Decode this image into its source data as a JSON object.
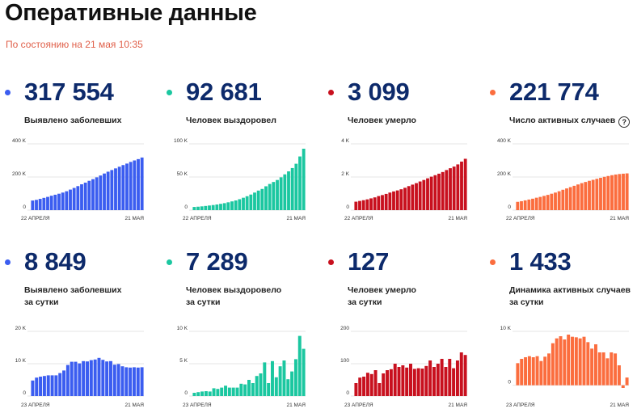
{
  "header": {
    "title": "Оперативные данные",
    "subtitle": "По состоянию на 21 мая 10:35"
  },
  "colors": {
    "blue": "#3b5df0",
    "teal": "#1bc7a0",
    "red": "#c8101e",
    "orange": "#fb6d3e"
  },
  "stats": [
    {
      "value": "317 554",
      "label_lines": [
        "Выявлено заболевших"
      ],
      "color": "blue",
      "help": false
    },
    {
      "value": "92 681",
      "label_lines": [
        "Человек выздоровел"
      ],
      "color": "teal",
      "help": false
    },
    {
      "value": "3 099",
      "label_lines": [
        "Человек умерло"
      ],
      "color": "red",
      "help": false
    },
    {
      "value": "221 774",
      "label_lines": [
        "Число активных случаев"
      ],
      "color": "orange",
      "help": true,
      "help_glyph": "?"
    },
    {
      "value": "8 849",
      "label_lines": [
        "Выявлено заболевших",
        "за сутки"
      ],
      "color": "blue",
      "help": false
    },
    {
      "value": "7 289",
      "label_lines": [
        "Человек выздоровело",
        "за сутки"
      ],
      "color": "teal",
      "help": false
    },
    {
      "value": "127",
      "label_lines": [
        "Человек умерло",
        "за сутки"
      ],
      "color": "red",
      "help": false
    },
    {
      "value": "1 433",
      "label_lines": [
        "Динамика активных случаев",
        "за сутки"
      ],
      "color": "orange",
      "help": false
    }
  ],
  "chart_data": [
    {
      "type": "bar",
      "series_color": "blue",
      "ylim": [
        0,
        400000
      ],
      "y_ticks": [
        0,
        200000,
        400000
      ],
      "y_tick_labels": [
        "0",
        "200 K",
        "400 K"
      ],
      "x_start_label": "22 АПРЕЛЯ",
      "x_end_label": "21 МАЯ",
      "values": [
        58000,
        62000,
        68000,
        74000,
        80000,
        87000,
        93000,
        99000,
        106000,
        114000,
        124000,
        134000,
        145000,
        156000,
        166000,
        177000,
        187000,
        198000,
        209000,
        221000,
        232000,
        242000,
        252000,
        262000,
        272000,
        281000,
        291000,
        300000,
        308000,
        317554
      ]
    },
    {
      "type": "bar",
      "series_color": "teal",
      "ylim": [
        0,
        100000
      ],
      "y_ticks": [
        0,
        50000,
        100000
      ],
      "y_tick_labels": [
        "0",
        "50 K",
        "100 K"
      ],
      "x_start_label": "22 АПРЕЛЯ",
      "x_end_label": "21 МАЯ",
      "values": [
        4800,
        5200,
        5700,
        6300,
        7000,
        7700,
        8500,
        9500,
        10500,
        11800,
        13200,
        14600,
        16500,
        18700,
        21000,
        23500,
        26500,
        29500,
        32000,
        36000,
        39500,
        42500,
        45500,
        49500,
        54000,
        58500,
        63500,
        70000,
        81000,
        92681
      ]
    },
    {
      "type": "bar",
      "series_color": "red",
      "ylim": [
        0,
        4000
      ],
      "y_ticks": [
        0,
        2000,
        4000
      ],
      "y_tick_labels": [
        "0",
        "2 K",
        "4 K"
      ],
      "x_start_label": "22 АПРЕЛЯ",
      "x_end_label": "21 МАЯ",
      "values": [
        510,
        555,
        600,
        650,
        710,
        770,
        850,
        910,
        980,
        1060,
        1130,
        1190,
        1260,
        1350,
        1450,
        1540,
        1630,
        1730,
        1820,
        1920,
        2020,
        2110,
        2200,
        2300,
        2420,
        2530,
        2630,
        2760,
        2930,
        3099
      ]
    },
    {
      "type": "bar",
      "series_color": "orange",
      "ylim": [
        0,
        400000
      ],
      "y_ticks": [
        0,
        200000,
        400000
      ],
      "y_tick_labels": [
        "0",
        "200 K",
        "400 K"
      ],
      "x_start_label": "22 АПРЕЛЯ",
      "x_end_label": "21 МАЯ",
      "values": [
        50000,
        54000,
        59000,
        64000,
        69000,
        75000,
        80000,
        86000,
        92000,
        99000,
        106000,
        114000,
        123000,
        131000,
        139000,
        147000,
        155000,
        163000,
        170000,
        177000,
        183000,
        189000,
        195000,
        201000,
        206000,
        211000,
        215000,
        218000,
        220000,
        221774
      ]
    },
    {
      "type": "bar",
      "series_color": "blue",
      "ylim": [
        0,
        20000
      ],
      "y_ticks": [
        0,
        10000,
        20000
      ],
      "y_tick_labels": [
        "0",
        "10 K",
        "20 K"
      ],
      "x_start_label": "23 АПРЕЛЯ",
      "x_end_label": "21 МАЯ",
      "values": [
        4800,
        5700,
        6000,
        6200,
        6400,
        6400,
        6400,
        7100,
        7900,
        9600,
        10600,
        10600,
        10100,
        10800,
        10700,
        11100,
        11300,
        11800,
        11200,
        10700,
        10800,
        9700,
        9900,
        9200,
        8900,
        8800,
        8900,
        8800,
        8900
      ]
    },
    {
      "type": "bar",
      "series_color": "teal",
      "ylim": [
        0,
        10000
      ],
      "y_ticks": [
        0,
        5000,
        10000
      ],
      "y_tick_labels": [
        "0",
        "5 K",
        "10 K"
      ],
      "x_start_label": "23 АПРЕЛЯ",
      "x_end_label": "21 МАЯ",
      "values": [
        500,
        600,
        700,
        750,
        700,
        1200,
        1100,
        1300,
        1600,
        1300,
        1300,
        1300,
        1900,
        1800,
        2500,
        2000,
        3100,
        3500,
        5200,
        2000,
        5400,
        2900,
        4600,
        5500,
        2600,
        3800,
        5700,
        9300,
        7300
      ]
    },
    {
      "type": "bar",
      "series_color": "red",
      "ylim": [
        0,
        200
      ],
      "y_ticks": [
        0,
        100,
        200
      ],
      "y_tick_labels": [
        "0",
        "100",
        "200"
      ],
      "x_start_label": "23 АПРЕЛЯ",
      "x_end_label": "21 МАЯ",
      "values": [
        40,
        57,
        60,
        72,
        68,
        80,
        40,
        70,
        80,
        83,
        100,
        90,
        95,
        88,
        100,
        84,
        86,
        85,
        93,
        110,
        90,
        100,
        115,
        90,
        115,
        86,
        110,
        135,
        127
      ]
    },
    {
      "type": "bar",
      "series_color": "orange",
      "ylim": [
        -2000,
        10000
      ],
      "y_ticks": [
        0,
        10000
      ],
      "y_tick_labels": [
        "0",
        "10 K"
      ],
      "x_start_label": "23 АПРЕЛЯ",
      "x_end_label": "21 МАЯ",
      "values": [
        4100,
        4900,
        5200,
        5400,
        5200,
        5400,
        4500,
        5300,
        5900,
        7800,
        8700,
        9100,
        8500,
        9400,
        9000,
        8900,
        8700,
        9000,
        8000,
        6800,
        7600,
        6100,
        6100,
        5000,
        6100,
        5900,
        3700,
        -500,
        1433
      ]
    }
  ]
}
